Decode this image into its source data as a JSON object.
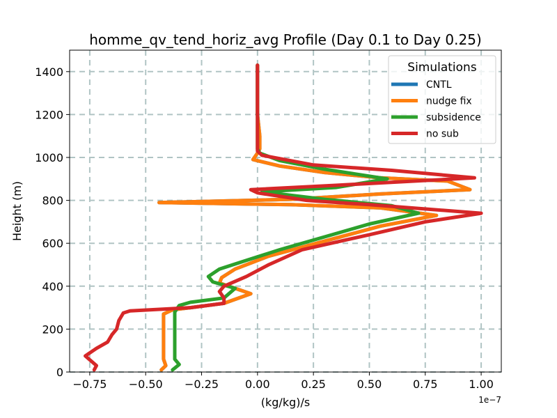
{
  "chart_data": {
    "type": "line",
    "title": "homme_qv_tend_horiz_avg Profile (Day 0.1 to Day 0.25)",
    "xlabel": "(kg/kg)/s",
    "ylabel": "Height (m)",
    "x_offset_label": "1e−7",
    "xlim": [
      -0.84,
      1.09
    ],
    "ylim": [
      0,
      1500
    ],
    "x_ticks": [
      -0.75,
      -0.5,
      -0.25,
      0.0,
      0.25,
      0.5,
      0.75,
      1.0
    ],
    "x_tick_labels": [
      "−0.75",
      "−0.50",
      "−0.25",
      "0.00",
      "0.25",
      "0.50",
      "0.75",
      "1.00"
    ],
    "y_ticks": [
      0,
      200,
      400,
      600,
      800,
      1000,
      1200,
      1400
    ],
    "y_tick_labels": [
      "0",
      "200",
      "400",
      "600",
      "800",
      "1000",
      "1200",
      "1400"
    ],
    "grid": true,
    "legend": {
      "title": "Simulations",
      "position": "top-right"
    },
    "series": [
      {
        "name": "CNTL",
        "color": "#1f77b4",
        "points": [
          [
            -0.43,
            10
          ],
          [
            -0.41,
            30
          ],
          [
            -0.42,
            60
          ],
          [
            -0.42,
            100
          ],
          [
            -0.42,
            150
          ],
          [
            -0.42,
            200
          ],
          [
            -0.42,
            250
          ],
          [
            -0.42,
            270
          ],
          [
            -0.38,
            290
          ],
          [
            -0.3,
            300
          ],
          [
            -0.15,
            320
          ],
          [
            -0.03,
            365
          ],
          [
            -0.1,
            390
          ],
          [
            -0.17,
            415
          ],
          [
            -0.16,
            440
          ],
          [
            -0.1,
            480
          ],
          [
            0.05,
            540
          ],
          [
            0.3,
            610
          ],
          [
            0.55,
            680
          ],
          [
            0.8,
            730
          ],
          [
            0.55,
            765
          ],
          [
            0.15,
            780
          ],
          [
            -0.44,
            790
          ],
          [
            0.15,
            805
          ],
          [
            0.55,
            830
          ],
          [
            0.95,
            850
          ],
          [
            0.85,
            890
          ],
          [
            0.55,
            905
          ],
          [
            0.3,
            930
          ],
          [
            0.1,
            960
          ],
          [
            -0.02,
            990
          ],
          [
            0.0,
            1020
          ],
          [
            0.01,
            1040
          ],
          [
            0.01,
            1100
          ],
          [
            0.0,
            1200
          ],
          [
            0.0,
            1300
          ],
          [
            0.0,
            1400
          ],
          [
            0.0,
            1430
          ]
        ]
      },
      {
        "name": "nudge fix",
        "color": "#ff7f0e",
        "points": [
          [
            -0.43,
            10
          ],
          [
            -0.41,
            30
          ],
          [
            -0.42,
            60
          ],
          [
            -0.42,
            100
          ],
          [
            -0.42,
            150
          ],
          [
            -0.42,
            200
          ],
          [
            -0.42,
            250
          ],
          [
            -0.42,
            270
          ],
          [
            -0.38,
            290
          ],
          [
            -0.3,
            300
          ],
          [
            -0.15,
            320
          ],
          [
            -0.03,
            365
          ],
          [
            -0.1,
            390
          ],
          [
            -0.17,
            415
          ],
          [
            -0.16,
            440
          ],
          [
            -0.1,
            480
          ],
          [
            0.05,
            540
          ],
          [
            0.3,
            610
          ],
          [
            0.55,
            680
          ],
          [
            0.8,
            730
          ],
          [
            0.55,
            765
          ],
          [
            0.15,
            780
          ],
          [
            -0.44,
            790
          ],
          [
            0.15,
            805
          ],
          [
            0.55,
            830
          ],
          [
            0.95,
            850
          ],
          [
            0.85,
            890
          ],
          [
            0.55,
            905
          ],
          [
            0.3,
            930
          ],
          [
            0.1,
            960
          ],
          [
            -0.02,
            990
          ],
          [
            0.0,
            1020
          ],
          [
            0.01,
            1040
          ],
          [
            0.01,
            1100
          ],
          [
            0.0,
            1200
          ],
          [
            0.0,
            1300
          ],
          [
            0.0,
            1400
          ],
          [
            0.0,
            1430
          ]
        ]
      },
      {
        "name": "subsidence",
        "color": "#2ca02c",
        "points": [
          [
            -0.38,
            10
          ],
          [
            -0.35,
            35
          ],
          [
            -0.37,
            60
          ],
          [
            -0.37,
            100
          ],
          [
            -0.37,
            150
          ],
          [
            -0.37,
            200
          ],
          [
            -0.37,
            250
          ],
          [
            -0.37,
            280
          ],
          [
            -0.35,
            310
          ],
          [
            -0.3,
            325
          ],
          [
            -0.15,
            345
          ],
          [
            -0.1,
            390
          ],
          [
            -0.2,
            420
          ],
          [
            -0.22,
            445
          ],
          [
            -0.17,
            480
          ],
          [
            -0.05,
            520
          ],
          [
            0.1,
            570
          ],
          [
            0.3,
            630
          ],
          [
            0.5,
            690
          ],
          [
            0.72,
            740
          ],
          [
            0.6,
            775
          ],
          [
            0.3,
            805
          ],
          [
            0.02,
            840
          ],
          [
            0.35,
            860
          ],
          [
            0.58,
            900
          ],
          [
            0.3,
            945
          ],
          [
            0.1,
            985
          ],
          [
            0.01,
            1020
          ],
          [
            0.0,
            1040
          ],
          [
            0.0,
            1100
          ],
          [
            0.0,
            1200
          ],
          [
            0.0,
            1300
          ],
          [
            0.0,
            1400
          ],
          [
            0.0,
            1430
          ]
        ]
      },
      {
        "name": "no sub",
        "color": "#d62728",
        "points": [
          [
            -0.73,
            10
          ],
          [
            -0.72,
            30
          ],
          [
            -0.77,
            75
          ],
          [
            -0.72,
            110
          ],
          [
            -0.67,
            140
          ],
          [
            -0.65,
            175
          ],
          [
            -0.63,
            200
          ],
          [
            -0.62,
            240
          ],
          [
            -0.6,
            275
          ],
          [
            -0.57,
            285
          ],
          [
            -0.3,
            300
          ],
          [
            -0.15,
            320
          ],
          [
            -0.15,
            345
          ],
          [
            -0.17,
            375
          ],
          [
            -0.15,
            400
          ],
          [
            -0.05,
            445
          ],
          [
            0.05,
            500
          ],
          [
            0.2,
            570
          ],
          [
            0.5,
            640
          ],
          [
            0.75,
            700
          ],
          [
            1.0,
            740
          ],
          [
            0.5,
            780
          ],
          [
            0.22,
            800
          ],
          [
            0.0,
            835
          ],
          [
            -0.03,
            850
          ],
          [
            0.35,
            870
          ],
          [
            0.97,
            905
          ],
          [
            0.6,
            940
          ],
          [
            0.25,
            965
          ],
          [
            0.02,
            1010
          ],
          [
            0.0,
            1030
          ],
          [
            0.0,
            1100
          ],
          [
            0.0,
            1200
          ],
          [
            0.0,
            1300
          ],
          [
            0.0,
            1400
          ],
          [
            0.0,
            1430
          ]
        ]
      }
    ]
  }
}
